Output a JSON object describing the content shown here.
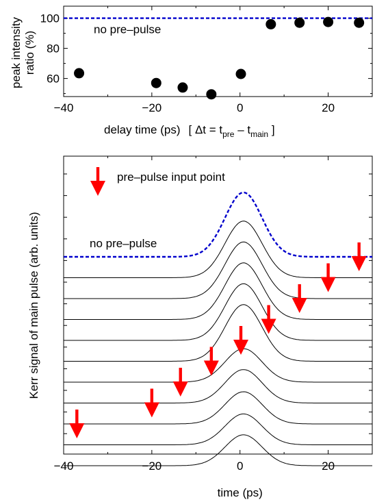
{
  "chart_data": [
    {
      "type": "scatter",
      "ylabel_line1": "peak intensity",
      "ylabel_line2": "ratio (%)",
      "xlabel": "delay time (ps)",
      "equation": {
        "open": "[ ",
        "delta_t": "Δt = t",
        "pre_sub": "pre",
        "minus": " – t",
        "main_sub": "main",
        "close": " ]"
      },
      "xlim": [
        -40,
        30
      ],
      "ylim": [
        48,
        108
      ],
      "xticks": [
        -40,
        -20,
        0,
        20
      ],
      "yticks": [
        60,
        80,
        100
      ],
      "points": [
        {
          "x": -36.5,
          "y": 63.5
        },
        {
          "x": -19,
          "y": 57
        },
        {
          "x": -13,
          "y": 54
        },
        {
          "x": -6.5,
          "y": 49.5
        },
        {
          "x": 0.2,
          "y": 63
        },
        {
          "x": 7,
          "y": 96
        },
        {
          "x": 13.5,
          "y": 97
        },
        {
          "x": 20,
          "y": 97.5
        },
        {
          "x": 27,
          "y": 97
        }
      ],
      "reference": {
        "y": 100,
        "label": "no pre–pulse",
        "color": "#0000cc"
      },
      "marker_color": "#000000"
    },
    {
      "type": "line",
      "ylabel": "Kerr signal of main pulse (arb. units)",
      "xlabel": "time (ps)",
      "xlim": [
        -40,
        30
      ],
      "xticks": [
        -40,
        -20,
        0,
        20
      ],
      "legend_label": "pre–pulse input point",
      "reference_label": "no pre–pulse",
      "reference_color": "#0000cc",
      "arrow_color": "#ff0000",
      "trace_color": "#000000",
      "pulse_center": 0.8,
      "reference": {
        "baseline": 0,
        "amplitude": 1.0
      },
      "traces": [
        {
          "baseline": 1,
          "amplitude": 0.88,
          "prepulse_time": 27
        },
        {
          "baseline": 2,
          "amplitude": 0.88,
          "prepulse_time": 20
        },
        {
          "baseline": 3,
          "amplitude": 0.88,
          "prepulse_time": 13.5
        },
        {
          "baseline": 4,
          "amplitude": 0.88,
          "prepulse_time": 6.5
        },
        {
          "baseline": 5,
          "amplitude": 0.88,
          "prepulse_time": 0.2
        },
        {
          "baseline": 6,
          "amplitude": 0.52,
          "prepulse_time": -6.5
        },
        {
          "baseline": 7,
          "amplitude": 0.52,
          "prepulse_time": -13.5
        },
        {
          "baseline": 8,
          "amplitude": 0.5,
          "prepulse_time": -20
        },
        {
          "baseline": 9,
          "amplitude": 0.48,
          "prepulse_time": -37
        },
        {
          "baseline": 10,
          "amplitude": 0.48,
          "prepulse_time": null
        }
      ]
    }
  ]
}
